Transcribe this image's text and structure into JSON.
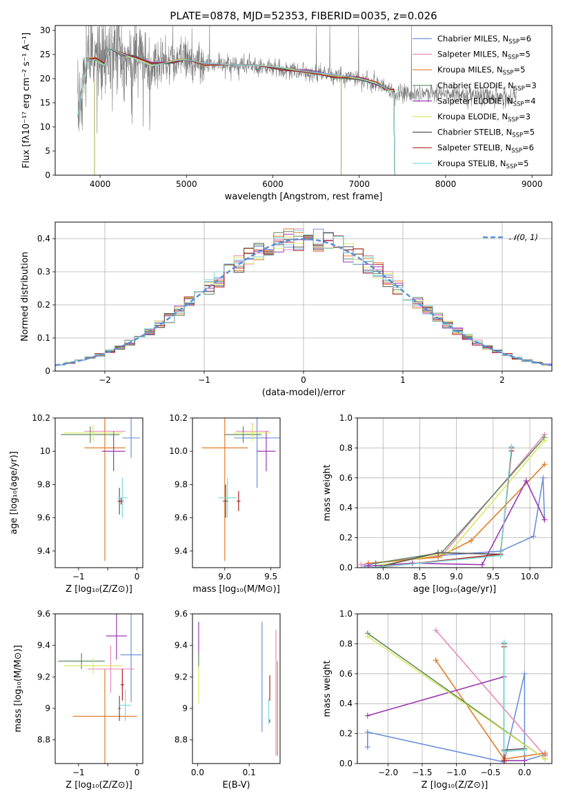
{
  "figure": {
    "title": "PLATE=0878, MJD=52353, FIBERID=0035, z=0.026"
  },
  "series_styles": [
    {
      "name": "Chabrier MILES, N_SSP=6",
      "name_main": "Chabrier MILES, N",
      "name_sub": "SSP",
      "name_end": "=6",
      "color": "#6a8fd8"
    },
    {
      "name": "Salpeter MILES, N_SSP=5",
      "name_main": "Salpeter MILES, N",
      "name_sub": "SSP",
      "name_end": "=5",
      "color": "#e889b8"
    },
    {
      "name": "Kroupa MILES, N_SSP=5",
      "name_main": "Kroupa MILES, N",
      "name_sub": "SSP",
      "name_end": "=5",
      "color": "#e07b27"
    },
    {
      "name": "Chabrier ELODIE, N_SSP=3",
      "name_main": "Chabrier ELODIE, N",
      "name_sub": "SSP",
      "name_end": "=3",
      "color": "#5f8a5f"
    },
    {
      "name": "Salpeter ELODIE, N_SSP=4",
      "name_main": "Salpeter ELODIE, N",
      "name_sub": "SSP",
      "name_end": "=4",
      "color": "#9b36b0"
    },
    {
      "name": "Kroupa ELODIE, N_SSP=3",
      "name_main": "Kroupa ELODIE, N",
      "name_sub": "SSP",
      "name_end": "=3",
      "color": "#d8e860"
    },
    {
      "name": "Chabrier STELIB, N_SSP=5",
      "name_main": "Chabrier STELIB, N",
      "name_sub": "SSP",
      "name_end": "=5",
      "color": "#555555"
    },
    {
      "name": "Salpeter STELIB, N_SSP=6",
      "name_main": "Salpeter STELIB, N",
      "name_sub": "SSP",
      "name_end": "=6",
      "color": "#b01c1c"
    },
    {
      "name": "Kroupa STELIB, N_SSP=5",
      "name_main": "Kroupa STELIB, N",
      "name_sub": "SSP",
      "name_end": "=5",
      "color": "#7fd8d8"
    }
  ],
  "chart_data": [
    {
      "id": "spectrum",
      "type": "line",
      "xlabel": "wavelength [Angstrom, rest frame]",
      "ylabel": "Flux [fλ10⁻¹⁷ erg cm⁻² s⁻¹ A⁻¹]",
      "xlim": [
        3480,
        9230
      ],
      "ylim": [
        0,
        31
      ],
      "xticks": [
        4000,
        5000,
        6000,
        7000,
        8000,
        9000
      ],
      "yticks": [
        0,
        5,
        10,
        15,
        20,
        25,
        30
      ],
      "legend_position": "upper-right",
      "model_curve": [
        [
          3740,
          12
        ],
        [
          3800,
          19
        ],
        [
          3850,
          24
        ],
        [
          3950,
          24
        ],
        [
          4050,
          23
        ],
        [
          4100,
          26
        ],
        [
          4250,
          25
        ],
        [
          4400,
          24.5
        ],
        [
          4600,
          23
        ],
        [
          4860,
          23.5
        ],
        [
          5000,
          24
        ],
        [
          5200,
          23
        ],
        [
          5500,
          23
        ],
        [
          5800,
          22.5
        ],
        [
          6100,
          22
        ],
        [
          6400,
          21.5
        ],
        [
          6700,
          20.5
        ],
        [
          7000,
          20
        ],
        [
          7200,
          19
        ],
        [
          7300,
          18
        ],
        [
          7400,
          17.5
        ],
        [
          7410,
          0
        ]
      ],
      "data_curve_color": "#7a7a7a",
      "data_xrange": [
        3740,
        8820
      ]
    },
    {
      "id": "residual_histogram",
      "type": "histogram",
      "xlabel": "(data-model)/error",
      "ylabel": "Normed distribution",
      "xlim": [
        -2.5,
        2.5
      ],
      "ylim": [
        0,
        0.45
      ],
      "xticks": [
        -2,
        -1,
        0,
        1,
        2
      ],
      "yticks": [
        0,
        0.1,
        0.2,
        0.3,
        0.4
      ],
      "grid": true,
      "legend_label": "𝒩(0, 1)",
      "reference_color": "#5b8fd9",
      "bin_width": 0.1
    },
    {
      "id": "age_vs_Z",
      "type": "scatter",
      "xlabel": "Z [log₁₀(Z/Z⊙)]",
      "ylabel": "age  [log₁₀(age/yr)]",
      "xlim": [
        -1.4,
        0.1
      ],
      "ylim": [
        9.3,
        10.2
      ],
      "xticks": [
        -1,
        -0.5,
        0
      ],
      "xtick_labels": [
        "−1",
        "",
        "0"
      ],
      "yticks": [
        9.4,
        9.6,
        9.8,
        10.0,
        10.2
      ],
      "errorbars": [
        {
          "series": 0,
          "x": -0.1,
          "y": 10.08,
          "xerr": 0.15,
          "yerr": 0.12
        },
        {
          "series": 1,
          "x": -0.55,
          "y": 10.12,
          "xerr": 0.35,
          "yerr": 0.05
        },
        {
          "series": 2,
          "x": -0.55,
          "y": 10.02,
          "xerr": 0.35,
          "yerr": 0.68
        },
        {
          "series": 3,
          "x": -0.8,
          "y": 10.1,
          "xerr": 0.5,
          "yerr": 0.05
        },
        {
          "series": 4,
          "x": -0.4,
          "y": 10.0,
          "xerr": 0.2,
          "yerr": 0.12
        },
        {
          "series": 5,
          "x": -0.75,
          "y": 10.11,
          "xerr": 0.5,
          "yerr": 0.05
        },
        {
          "series": 6,
          "x": -0.3,
          "y": 9.7,
          "xerr": 0.03,
          "yerr": 0.08
        },
        {
          "series": 7,
          "x": -0.27,
          "y": 9.7,
          "xerr": 0.04,
          "yerr": 0.02
        },
        {
          "series": 8,
          "x": -0.25,
          "y": 9.72,
          "xerr": 0.08,
          "yerr": 0.12
        }
      ]
    },
    {
      "id": "age_vs_mass",
      "type": "scatter",
      "xlabel": "mass [log₁₀(M/M⊙)]",
      "xlim": [
        8.65,
        9.6
      ],
      "ylim": [
        9.3,
        10.2
      ],
      "xticks": [
        9.0,
        9.5
      ],
      "yticks": [
        9.4,
        9.6,
        9.8,
        10.0,
        10.2
      ],
      "errorbars": [
        {
          "series": 0,
          "x": 9.35,
          "y": 10.08,
          "xerr": 0.25,
          "yerr": 0.3
        },
        {
          "series": 1,
          "x": 9.3,
          "y": 10.12,
          "xerr": 0.18,
          "yerr": 0.05
        },
        {
          "series": 2,
          "x": 9.0,
          "y": 10.02,
          "xerr": 0.25,
          "yerr": 0.68
        },
        {
          "series": 3,
          "x": 9.2,
          "y": 10.1,
          "xerr": 0.2,
          "yerr": 0.05
        },
        {
          "series": 4,
          "x": 9.45,
          "y": 10.0,
          "xerr": 0.1,
          "yerr": 0.12
        },
        {
          "series": 5,
          "x": 9.3,
          "y": 10.11,
          "xerr": 0.2,
          "yerr": 0.05
        },
        {
          "series": 6,
          "x": 9.01,
          "y": 9.7,
          "xerr": 0.03,
          "yerr": 0.1
        },
        {
          "series": 7,
          "x": 9.15,
          "y": 9.7,
          "xerr": 0.02,
          "yerr": 0.06
        },
        {
          "series": 8,
          "x": 9.03,
          "y": 9.72,
          "xerr": 0.1,
          "yerr": 0.12
        }
      ]
    },
    {
      "id": "mass_weight_vs_age",
      "type": "line",
      "xlabel": "age  [log₁₀(age/yr)]",
      "ylabel": "mass weight",
      "xlim": [
        7.65,
        10.3
      ],
      "ylim": [
        0,
        1
      ],
      "xticks": [
        8.0,
        8.5,
        9.0,
        9.5,
        10.0
      ],
      "yticks": [
        0,
        0.2,
        0.4,
        0.6,
        0.8,
        1.0
      ],
      "grid": true,
      "lines": [
        {
          "series": 0,
          "points": [
            [
              7.75,
              0.01
            ],
            [
              7.9,
              0.03
            ],
            [
              8.75,
              0.08
            ],
            [
              9.6,
              0.11
            ],
            [
              10.05,
              0.21
            ],
            [
              10.18,
              0.6
            ],
            [
              10.2,
              0.32
            ]
          ]
        },
        {
          "series": 1,
          "points": [
            [
              7.7,
              0.02
            ],
            [
              8.8,
              0.08
            ],
            [
              10.2,
              0.89
            ]
          ]
        },
        {
          "series": 2,
          "points": [
            [
              7.8,
              0.03
            ],
            [
              8.75,
              0.07
            ],
            [
              9.2,
              0.18
            ],
            [
              10.2,
              0.69
            ]
          ]
        },
        {
          "series": 3,
          "points": [
            [
              7.9,
              0.03
            ],
            [
              8.8,
              0.1
            ],
            [
              10.2,
              0.87
            ]
          ]
        },
        {
          "series": 4,
          "points": [
            [
              7.8,
              0.01
            ],
            [
              8.4,
              0.03
            ],
            [
              9.35,
              0.02
            ],
            [
              9.95,
              0.58
            ],
            [
              10.2,
              0.32
            ]
          ]
        },
        {
          "series": 5,
          "points": [
            [
              8.0,
              0.02
            ],
            [
              8.9,
              0.1
            ],
            [
              10.2,
              0.85
            ]
          ]
        },
        {
          "series": 6,
          "points": [
            [
              7.9,
              0.0
            ],
            [
              8.75,
              0.1
            ],
            [
              9.6,
              0.09
            ],
            [
              9.75,
              0.8
            ]
          ]
        },
        {
          "series": 7,
          "points": [
            [
              7.9,
              0.0
            ],
            [
              9.6,
              0.09
            ],
            [
              9.75,
              0.78
            ]
          ]
        },
        {
          "series": 8,
          "points": [
            [
              7.85,
              0.0
            ],
            [
              9.6,
              0.08
            ],
            [
              9.75,
              0.81
            ]
          ]
        }
      ]
    },
    {
      "id": "mass_vs_Z",
      "type": "scatter",
      "xlabel": "Z [log₁₀(Z/Z⊙)]",
      "ylabel": "mass [log₁₀(M/M⊙)]",
      "xlim": [
        -1.4,
        0.1
      ],
      "ylim": [
        8.65,
        9.6
      ],
      "xticks": [
        -1,
        -0.5,
        0
      ],
      "xtick_labels": [
        "−1",
        "",
        "0"
      ],
      "yticks": [
        8.8,
        9.0,
        9.2,
        9.4,
        9.6
      ],
      "errorbars": [
        {
          "series": 0,
          "x": -0.1,
          "y": 9.34,
          "xerr": 0.18,
          "yerr": 0.3
        },
        {
          "series": 1,
          "x": -0.45,
          "y": 9.25,
          "xerr": 0.4,
          "yerr": 0.15
        },
        {
          "series": 2,
          "x": -0.55,
          "y": 8.95,
          "xerr": 0.55,
          "yerr": 0.3
        },
        {
          "series": 3,
          "x": -0.95,
          "y": 9.3,
          "xerr": 0.4,
          "yerr": 0.05
        },
        {
          "series": 4,
          "x": -0.35,
          "y": 9.46,
          "xerr": 0.18,
          "yerr": 0.15
        },
        {
          "series": 5,
          "x": -0.75,
          "y": 9.27,
          "xerr": 0.5,
          "yerr": 0.05
        },
        {
          "series": 6,
          "x": -0.3,
          "y": 9.0,
          "xerr": 0.02,
          "yerr": 0.08
        },
        {
          "series": 7,
          "x": -0.25,
          "y": 9.15,
          "xerr": 0.03,
          "yerr": 0.1
        },
        {
          "series": 8,
          "x": -0.2,
          "y": 9.02,
          "xerr": 0.1,
          "yerr": 0.1
        }
      ]
    },
    {
      "id": "mass_vs_EBV",
      "type": "scatter",
      "xlabel": "E(B-V)",
      "xlim": [
        -0.01,
        0.16
      ],
      "ylim": [
        8.65,
        9.6
      ],
      "xticks": [
        0.0,
        0.1
      ],
      "yticks": [
        8.8,
        9.0,
        9.2,
        9.4,
        9.6
      ],
      "errorbars": [
        {
          "series": 0,
          "x": 0.125,
          "y": 9.2,
          "xerr": 0,
          "yerr": 0.35
        },
        {
          "series": 1,
          "x": 0.152,
          "y": 9.1,
          "xerr": 0,
          "yerr": 0.4
        },
        {
          "series": 2,
          "x": 0.155,
          "y": 9.0,
          "xerr": 0,
          "yerr": 0.3
        },
        {
          "series": 3,
          "x": 0.002,
          "y": 9.3,
          "xerr": 0,
          "yerr": 0.05
        },
        {
          "series": 4,
          "x": 0.002,
          "y": 9.45,
          "xerr": 0,
          "yerr": 0.1
        },
        {
          "series": 5,
          "x": 0.002,
          "y": 9.15,
          "xerr": 0,
          "yerr": 0.12
        },
        {
          "series": 6,
          "x": 0.14,
          "y": 8.92,
          "xerr": 0,
          "yerr": 0.01
        },
        {
          "series": 7,
          "x": 0.14,
          "y": 9.13,
          "xerr": 0,
          "yerr": 0.08
        },
        {
          "series": 8,
          "x": 0.138,
          "y": 8.98,
          "xerr": 0,
          "yerr": 0.08
        }
      ]
    },
    {
      "id": "mass_weight_vs_Z",
      "type": "line",
      "xlabel": "Z [log₁₀(Z/Z⊙)]",
      "ylabel": "mass weight",
      "xlim": [
        -2.45,
        0.4
      ],
      "ylim": [
        0,
        1
      ],
      "xticks": [
        -2.0,
        -1.5,
        -1.0,
        -0.5,
        0.0
      ],
      "yticks": [
        0,
        0.2,
        0.4,
        0.6,
        0.8,
        1.0
      ],
      "grid": true,
      "lines": [
        {
          "series": 0,
          "points": [
            [
              -2.3,
              0.11
            ],
            [
              -2.3,
              0.21
            ],
            [
              -0.3,
              0.01
            ],
            [
              0.0,
              0.6
            ],
            [
              0.0,
              0.02
            ],
            [
              0.3,
              0.06
            ]
          ]
        },
        {
          "series": 1,
          "points": [
            [
              -1.3,
              0.89
            ],
            [
              0.3,
              0.05
            ]
          ]
        },
        {
          "series": 2,
          "points": [
            [
              -1.3,
              0.69
            ],
            [
              -0.3,
              0.03
            ],
            [
              0.3,
              0.07
            ]
          ]
        },
        {
          "series": 3,
          "points": [
            [
              -2.3,
              0.87
            ],
            [
              0.3,
              0.03
            ]
          ]
        },
        {
          "series": 4,
          "points": [
            [
              -2.3,
              0.32
            ],
            [
              -0.3,
              0.58
            ],
            [
              -0.3,
              0.02
            ],
            [
              0.0,
              0.02
            ]
          ]
        },
        {
          "series": 5,
          "points": [
            [
              -2.3,
              0.85
            ],
            [
              0.3,
              0.03
            ]
          ]
        },
        {
          "series": 6,
          "points": [
            [
              -0.3,
              0.8
            ],
            [
              -0.3,
              0.09
            ],
            [
              0.0,
              0.1
            ]
          ]
        },
        {
          "series": 7,
          "points": [
            [
              -0.3,
              0.78
            ],
            [
              -0.3,
              0.02
            ]
          ]
        },
        {
          "series": 8,
          "points": [
            [
              -0.3,
              0.81
            ],
            [
              -0.3,
              0.08
            ],
            [
              0.0,
              0.09
            ]
          ]
        }
      ]
    }
  ]
}
